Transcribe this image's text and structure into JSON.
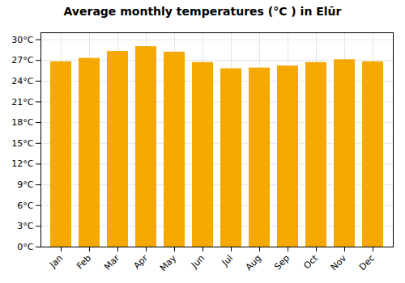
{
  "chart_data": {
    "type": "bar",
    "title": "Average monthly temperatures (°C ) in Elūr",
    "categories": [
      "Jan",
      "Feb",
      "Mar",
      "Apr",
      "May",
      "Jun",
      "Jul",
      "Aug",
      "Sep",
      "Oct",
      "Nov",
      "Dec"
    ],
    "values": [
      26.8,
      27.3,
      28.3,
      29.0,
      28.2,
      26.7,
      25.8,
      25.9,
      26.2,
      26.7,
      27.1,
      26.8
    ],
    "color": "#F5A800",
    "ylim": [
      0,
      31
    ],
    "yticks": [
      {
        "value": 0,
        "label": "0°C"
      },
      {
        "value": 3,
        "label": "3°C"
      },
      {
        "value": 6,
        "label": "6°C"
      },
      {
        "value": 9,
        "label": "9°C"
      },
      {
        "value": 12,
        "label": "12°C"
      },
      {
        "value": 15,
        "label": "15°C"
      },
      {
        "value": 18,
        "label": "18°C"
      },
      {
        "value": 21,
        "label": "21°C"
      },
      {
        "value": 24,
        "label": "24°C"
      },
      {
        "value": 27,
        "label": "27°C"
      },
      {
        "value": 30,
        "label": "30°C"
      }
    ],
    "grid": true
  }
}
